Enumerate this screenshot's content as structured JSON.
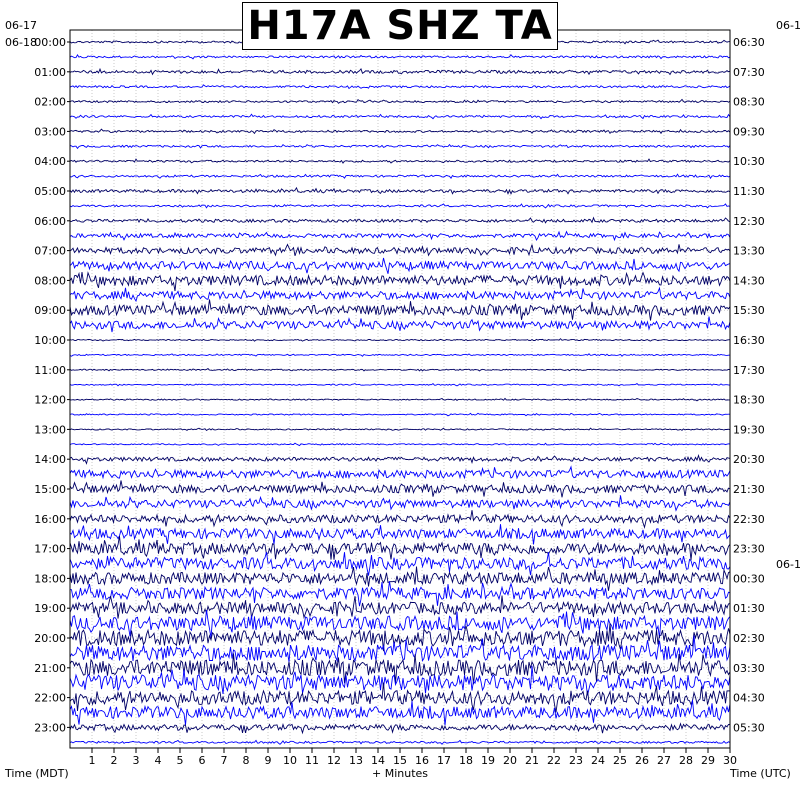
{
  "chart_data": {
    "type": "line",
    "title": "H17A SHZ TA",
    "xlabel": "+ Minutes",
    "left_axis_label": "Time (MDT)",
    "right_axis_label": "Time (UTC)",
    "xlim": [
      0,
      30
    ],
    "x_ticks": [
      "1",
      "2",
      "3",
      "4",
      "5",
      "6",
      "7",
      "8",
      "9",
      "10",
      "11",
      "12",
      "13",
      "14",
      "15",
      "16",
      "17",
      "18",
      "19",
      "20",
      "21",
      "22",
      "23",
      "24",
      "25",
      "26",
      "27",
      "28",
      "29",
      "30"
    ],
    "left_date_labels": [
      "06-17",
      "06-18"
    ],
    "right_date_labels": [
      "06-1",
      "06-1"
    ],
    "left_time_labels": [
      "00:00",
      "01:00",
      "02:00",
      "03:00",
      "04:00",
      "05:00",
      "06:00",
      "07:00",
      "08:00",
      "09:00",
      "10:00",
      "11:00",
      "12:00",
      "13:00",
      "14:00",
      "15:00",
      "16:00",
      "17:00",
      "18:00",
      "19:00",
      "20:00",
      "21:00",
      "22:00",
      "23:00"
    ],
    "right_time_labels": [
      "06:30",
      "07:30",
      "08:30",
      "09:30",
      "10:30",
      "11:30",
      "12:30",
      "13:30",
      "14:30",
      "15:30",
      "16:30",
      "17:30",
      "18:30",
      "19:30",
      "20:30",
      "21:30",
      "22:30",
      "23:30",
      "00:30",
      "01:30",
      "02:30",
      "03:30",
      "04:30",
      "05:30"
    ],
    "traces_per_hour": 2,
    "trace_colors": [
      "#000066",
      "#0000ff"
    ],
    "clip_color": "#ff0000",
    "grid": true,
    "series": [
      {
        "hour": "00:00",
        "amplitude": [
          1,
          1
        ]
      },
      {
        "hour": "01:00",
        "amplitude": [
          1.5,
          1
        ]
      },
      {
        "hour": "02:00",
        "amplitude": [
          1,
          1
        ]
      },
      {
        "hour": "03:00",
        "amplitude": [
          1,
          1
        ]
      },
      {
        "hour": "04:00",
        "amplitude": [
          1,
          1
        ]
      },
      {
        "hour": "05:00",
        "amplitude": [
          1.5,
          1
        ]
      },
      {
        "hour": "06:00",
        "amplitude": [
          1.5,
          2
        ]
      },
      {
        "hour": "07:00",
        "amplitude": [
          3,
          4
        ]
      },
      {
        "hour": "08:00",
        "amplitude": [
          5,
          4
        ]
      },
      {
        "hour": "09:00",
        "amplitude": [
          5,
          4
        ]
      },
      {
        "hour": "10:00",
        "amplitude": [
          0,
          0
        ]
      },
      {
        "hour": "11:00",
        "amplitude": [
          0,
          0
        ]
      },
      {
        "hour": "12:00",
        "amplitude": [
          0,
          0
        ]
      },
      {
        "hour": "13:00",
        "amplitude": [
          0,
          0
        ]
      },
      {
        "hour": "14:00",
        "amplitude": [
          2,
          4
        ]
      },
      {
        "hour": "15:00",
        "amplitude": [
          4,
          4
        ]
      },
      {
        "hour": "16:00",
        "amplitude": [
          4,
          5
        ]
      },
      {
        "hour": "17:00",
        "amplitude": [
          6,
          6
        ]
      },
      {
        "hour": "18:00",
        "amplitude": [
          6,
          6
        ]
      },
      {
        "hour": "19:00",
        "amplitude": [
          6,
          7
        ]
      },
      {
        "hour": "20:00",
        "amplitude": [
          8,
          8
        ]
      },
      {
        "hour": "21:00",
        "amplitude": [
          8,
          8
        ]
      },
      {
        "hour": "22:00",
        "amplitude": [
          7,
          6
        ]
      },
      {
        "hour": "23:00",
        "amplitude": [
          3,
          1
        ]
      }
    ]
  }
}
